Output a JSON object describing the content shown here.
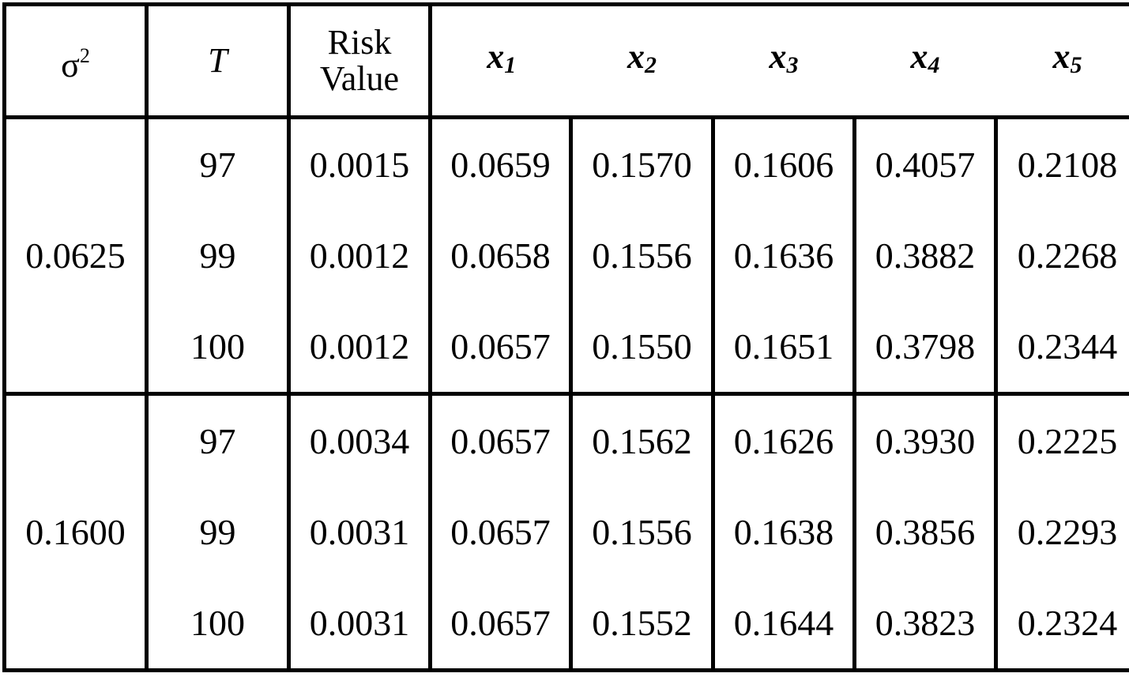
{
  "table": {
    "header": {
      "sigma": {
        "text": "σ",
        "sup": "2"
      },
      "t": "T",
      "risk": "Risk Value",
      "x": [
        {
          "text": "x",
          "sub": "1"
        },
        {
          "text": "x",
          "sub": "2"
        },
        {
          "text": "x",
          "sub": "3"
        },
        {
          "text": "x",
          "sub": "4"
        },
        {
          "text": "x",
          "sub": "5"
        }
      ]
    },
    "groups": [
      {
        "sigma": "0.0625",
        "rows": [
          [
            "97",
            "0.0015",
            "0.0659",
            "0.1570",
            "0.1606",
            "0.4057",
            "0.2108"
          ],
          [
            "99",
            "0.0012",
            "0.0658",
            "0.1556",
            "0.1636",
            "0.3882",
            "0.2268"
          ],
          [
            "100",
            "0.0012",
            "0.0657",
            "0.1550",
            "0.1651",
            "0.3798",
            "0.2344"
          ]
        ]
      },
      {
        "sigma": "0.1600",
        "rows": [
          [
            "97",
            "0.0034",
            "0.0657",
            "0.1562",
            "0.1626",
            "0.3930",
            "0.2225"
          ],
          [
            "99",
            "0.0031",
            "0.0657",
            "0.1556",
            "0.1638",
            "0.3856",
            "0.2293"
          ],
          [
            "100",
            "0.0031",
            "0.0657",
            "0.1552",
            "0.1644",
            "0.3823",
            "0.2324"
          ]
        ]
      }
    ]
  }
}
